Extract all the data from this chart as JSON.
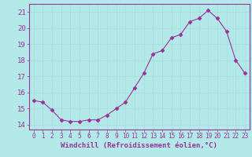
{
  "x": [
    0,
    1,
    2,
    3,
    4,
    5,
    6,
    7,
    8,
    9,
    10,
    11,
    12,
    13,
    14,
    15,
    16,
    17,
    18,
    19,
    20,
    21,
    22,
    23
  ],
  "y": [
    15.5,
    15.4,
    14.9,
    14.3,
    14.2,
    14.2,
    14.3,
    14.3,
    14.6,
    15.0,
    15.4,
    16.3,
    17.2,
    18.4,
    18.6,
    19.4,
    19.6,
    20.4,
    20.6,
    21.1,
    20.6,
    19.8,
    18.0,
    17.2
  ],
  "line_color": "#993399",
  "marker": "D",
  "marker_size": 2.5,
  "bg_color": "#b2e8e8",
  "grid_color": "#aadddd",
  "xlabel": "Windchill (Refroidissement éolien,°C)",
  "ylabel_ticks": [
    14,
    15,
    16,
    17,
    18,
    19,
    20,
    21
  ],
  "xlim": [
    -0.5,
    23.5
  ],
  "ylim": [
    13.7,
    21.5
  ],
  "axis_label_color": "#993399",
  "tick_color": "#993399",
  "font_size_xlabel": 6.5,
  "font_size_ytick": 6.5,
  "font_size_xtick": 5.5,
  "spine_color": "#993399"
}
